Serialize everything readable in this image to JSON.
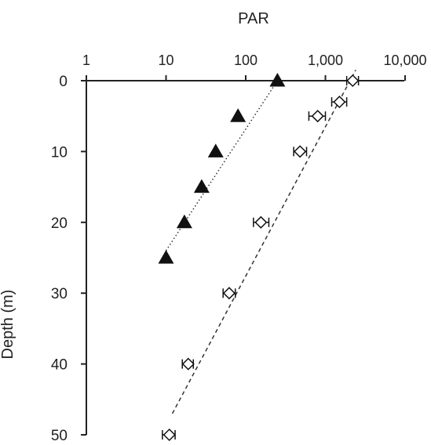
{
  "chart_data": {
    "type": "scatter",
    "title": "",
    "xlabel": "PAR",
    "ylabel": "Depth (m)",
    "x_scale": "log",
    "x_axis_position": "top",
    "y_inverted": true,
    "xlim": [
      1,
      10000
    ],
    "ylim": [
      0,
      50
    ],
    "x_ticks": [
      1,
      10,
      100,
      1000,
      10000
    ],
    "x_tick_labels": [
      "1",
      "10",
      "100",
      "1,000",
      "10,000"
    ],
    "y_ticks": [
      0,
      10,
      20,
      30,
      40,
      50
    ],
    "y_tick_labels": [
      "0",
      "10",
      "20",
      "30",
      "40",
      "50"
    ],
    "grid": false,
    "series": [
      {
        "marker": "filled-triangle",
        "color": "#111111",
        "points": [
          {
            "x": 250,
            "y": 0
          },
          {
            "x": 80,
            "y": 5
          },
          {
            "x": 42,
            "y": 10
          },
          {
            "x": 28,
            "y": 15
          },
          {
            "x": 17,
            "y": 20
          },
          {
            "x": 10,
            "y": 25
          }
        ],
        "trendline": {
          "style": "dotted",
          "from": {
            "x": 10,
            "y": 24
          },
          "to": {
            "x": 250,
            "y": 0
          }
        }
      },
      {
        "marker": "open-diamond-with-error-bars",
        "color": "#111111",
        "points": [
          {
            "x": 2200,
            "y": 0,
            "err_low": 1850,
            "err_high": 2600
          },
          {
            "x": 1500,
            "y": 3,
            "err_low": 1200,
            "err_high": 1850
          },
          {
            "x": 800,
            "y": 5,
            "err_low": 620,
            "err_high": 1000
          },
          {
            "x": 480,
            "y": 10,
            "err_low": 400,
            "err_high": 580
          },
          {
            "x": 155,
            "y": 20,
            "err_low": 125,
            "err_high": 195
          },
          {
            "x": 62,
            "y": 30,
            "err_low": 52,
            "err_high": 74
          },
          {
            "x": 19,
            "y": 40,
            "err_low": 16,
            "err_high": 22
          },
          {
            "x": 11,
            "y": 50,
            "err_low": 9,
            "err_high": 13
          }
        ],
        "trendline": {
          "style": "dashed",
          "from": {
            "x": 12,
            "y": 47
          },
          "to": {
            "x": 2400,
            "y": -1.5
          }
        }
      }
    ]
  }
}
